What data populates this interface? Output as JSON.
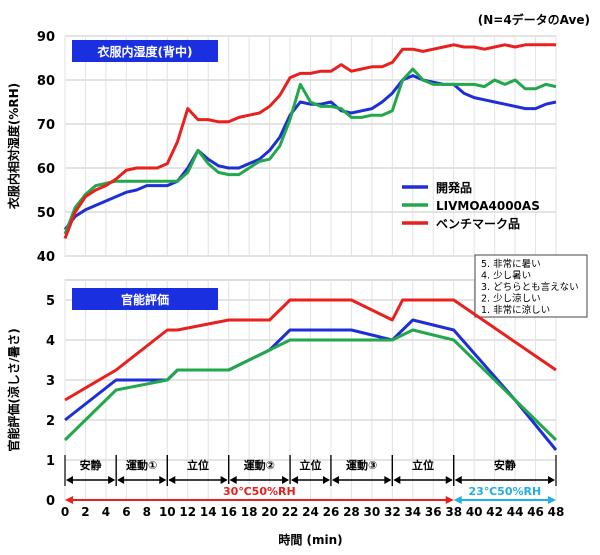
{
  "note": "(N=4データのAve)",
  "colors": {
    "dev": "#1f2fd6",
    "liv": "#22a84a",
    "bench": "#e8201e",
    "panel": "#1a2fe0",
    "red_line": "#e8201e",
    "blue_line": "#22aee6"
  },
  "chart_data": [
    {
      "type": "line",
      "title": "衣服内湿度(背中)",
      "ylabel": "衣服内相対湿度(%RH)",
      "ylim": [
        40,
        90
      ],
      "yticks": [
        40,
        50,
        60,
        70,
        80,
        90
      ],
      "x": [
        0,
        1,
        2,
        3,
        4,
        5,
        6,
        7,
        8,
        9,
        10,
        11,
        12,
        13,
        14,
        15,
        16,
        17,
        18,
        19,
        20,
        21,
        22,
        23,
        24,
        25,
        26,
        27,
        28,
        29,
        30,
        31,
        32,
        33,
        34,
        35,
        36,
        37,
        38,
        39,
        40,
        41,
        42,
        43,
        44,
        45,
        46,
        47,
        48
      ],
      "series": [
        {
          "name": "開発品",
          "color": "#1f2fd6",
          "values": [
            46,
            49,
            50.5,
            51.5,
            52.5,
            53.5,
            54.5,
            55,
            56,
            56,
            56,
            57,
            60,
            64,
            62,
            60.5,
            60,
            60,
            61,
            62,
            64,
            67,
            72,
            75,
            74.5,
            74.5,
            75,
            73,
            72.5,
            73,
            73.5,
            75,
            77,
            80,
            81,
            80,
            79.5,
            79,
            79,
            77,
            76,
            75.5,
            75,
            74.5,
            74,
            73.5,
            73.5,
            74.5,
            75
          ]
        },
        {
          "name": "LIVMOA4000AS",
          "color": "#22a84a",
          "values": [
            45,
            51,
            54,
            56,
            56.5,
            57,
            57,
            57,
            57,
            57,
            57,
            57,
            59,
            64,
            61,
            59,
            58.5,
            58.5,
            60,
            61.5,
            62,
            65,
            71,
            79,
            75,
            74,
            74,
            73.5,
            71.5,
            71.5,
            72,
            72,
            73,
            80,
            82.5,
            80,
            79,
            79,
            79,
            79,
            79,
            78.5,
            80,
            79,
            80,
            78,
            78,
            79,
            78.5
          ]
        },
        {
          "name": "ベンチマーク品",
          "color": "#e8201e",
          "values": [
            44,
            50,
            53.5,
            55,
            56,
            57.5,
            59.5,
            60,
            60,
            60,
            61,
            66,
            73.5,
            71,
            71,
            70.5,
            70.5,
            71.5,
            72,
            72.5,
            74,
            76.5,
            80.5,
            81.5,
            81.5,
            82,
            82,
            83.5,
            82,
            82.5,
            83,
            83,
            84,
            87,
            87,
            86.5,
            87,
            87.5,
            88,
            87.5,
            87.5,
            87,
            87.5,
            88,
            87.5,
            88,
            88,
            88,
            88
          ]
        }
      ],
      "legend_position": "right"
    },
    {
      "type": "line",
      "title": "官能評価",
      "ylabel": "官能評価(涼しさ/暑さ)",
      "ylim": [
        0,
        5.5
      ],
      "yticks": [
        0,
        1,
        2,
        3,
        4,
        5
      ],
      "x": [
        0,
        5,
        6,
        10,
        11,
        16,
        20,
        22,
        23,
        24,
        26,
        28,
        30,
        32,
        34,
        38,
        39,
        48
      ],
      "series": [
        {
          "name": "開発品",
          "color": "#1f2fd6",
          "points": [
            [
              0,
              2
            ],
            [
              5,
              3
            ],
            [
              10,
              3
            ],
            [
              11,
              3.25
            ],
            [
              16,
              3.25
            ],
            [
              20,
              3.75
            ],
            [
              22,
              4.25
            ],
            [
              28,
              4.25
            ],
            [
              32,
              4
            ],
            [
              34,
              4.5
            ],
            [
              38,
              4.25
            ],
            [
              44,
              2.5
            ],
            [
              48,
              1.25
            ]
          ]
        },
        {
          "name": "LIVMOA4000AS",
          "color": "#22a84a",
          "points": [
            [
              0,
              1.5
            ],
            [
              5,
              2.75
            ],
            [
              10,
              3
            ],
            [
              11,
              3.25
            ],
            [
              16,
              3.25
            ],
            [
              20,
              3.75
            ],
            [
              22,
              4
            ],
            [
              28,
              4
            ],
            [
              32,
              4
            ],
            [
              34,
              4.25
            ],
            [
              38,
              4
            ],
            [
              44,
              2.5
            ],
            [
              48,
              1.5
            ]
          ]
        },
        {
          "name": "ベンチマーク品",
          "color": "#e8201e",
          "points": [
            [
              0,
              2.5
            ],
            [
              5,
              3.25
            ],
            [
              10,
              4.25
            ],
            [
              11,
              4.25
            ],
            [
              16,
              4.5
            ],
            [
              20,
              4.5
            ],
            [
              22,
              5
            ],
            [
              28,
              5
            ],
            [
              32,
              4.5
            ],
            [
              33,
              5
            ],
            [
              38,
              5
            ],
            [
              48,
              3.25
            ]
          ]
        }
      ],
      "xlabel": "時間 (min)",
      "xticks": [
        0,
        2,
        4,
        6,
        8,
        10,
        12,
        14,
        16,
        18,
        20,
        22,
        24,
        26,
        28,
        30,
        32,
        34,
        36,
        38,
        40,
        42,
        44,
        46,
        48
      ],
      "scale_legend": [
        "5. 非常に暑い",
        "4. 少し暑い",
        "3. どちらとも言えない",
        "2. 少し涼しい",
        "1. 非常に涼しい"
      ],
      "phases": [
        {
          "label": "安静",
          "start": 0,
          "end": 5
        },
        {
          "label": "運動①",
          "start": 5,
          "end": 10
        },
        {
          "label": "立位",
          "start": 10,
          "end": 16
        },
        {
          "label": "運動②",
          "start": 16,
          "end": 22
        },
        {
          "label": "立位",
          "start": 22,
          "end": 26
        },
        {
          "label": "運動③",
          "start": 26,
          "end": 32
        },
        {
          "label": "立位",
          "start": 32,
          "end": 38
        },
        {
          "label": "安静",
          "start": 38,
          "end": 48
        }
      ],
      "conditions": [
        {
          "label": "30℃50%RH",
          "start": 0,
          "end": 38
        },
        {
          "label": "23℃50%RH",
          "start": 38,
          "end": 48
        }
      ]
    }
  ]
}
